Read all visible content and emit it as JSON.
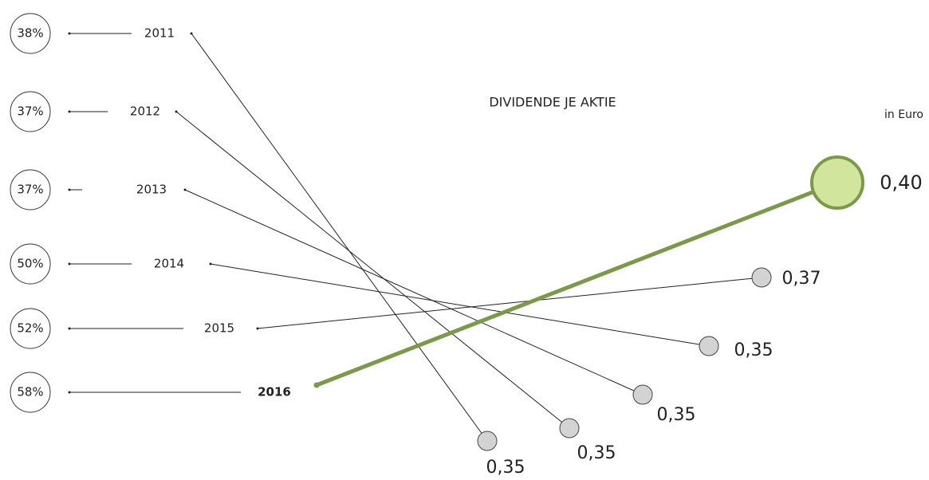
{
  "title": "DIVIDENDE JE AKTIE",
  "unit": "in Euro",
  "rows": [
    {
      "year": "2011",
      "payout": "38%",
      "dividend": "0,35"
    },
    {
      "year": "2012",
      "payout": "37%",
      "dividend": "0,35"
    },
    {
      "year": "2013",
      "payout": "37%",
      "dividend": "0,35"
    },
    {
      "year": "2014",
      "payout": "50%",
      "dividend": "0,35"
    },
    {
      "year": "2015",
      "payout": "52%",
      "dividend": "0,37"
    },
    {
      "year": "2016",
      "payout": "58%",
      "dividend": "0,40"
    }
  ]
}
